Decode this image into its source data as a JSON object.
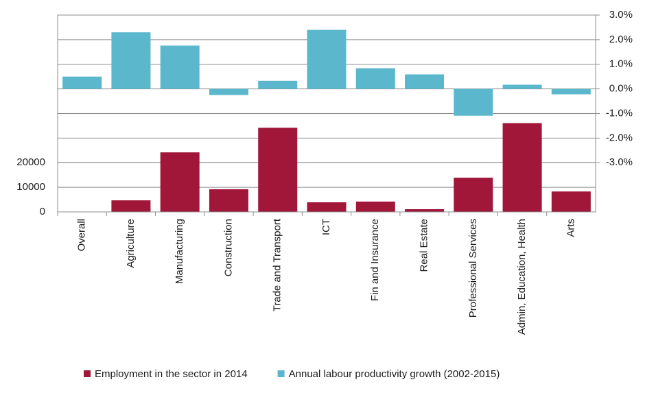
{
  "chart_data": {
    "type": "bar",
    "categories": [
      "Overall",
      "Agriculture",
      "Manufacturing",
      "Construction",
      "Trade and Transport",
      "ICT",
      "Fin and Insurance",
      "Real Estate",
      "Professional Services",
      "Admin, Education, Health",
      "Arts"
    ],
    "series": [
      {
        "name": "Employment in the sector in 2014",
        "color": "#a0173a",
        "values": [
          0,
          4700,
          24200,
          9200,
          34200,
          3900,
          4200,
          1100,
          13900,
          36100,
          8300
        ]
      },
      {
        "name": "Annual labour productivity growth (2002-2015)",
        "color": "#5bb8cc",
        "axis": "y2",
        "values": [
          0.5,
          2.3,
          1.76,
          -0.25,
          0.33,
          2.4,
          0.84,
          0.59,
          -1.09,
          0.17,
          -0.22
        ]
      }
    ],
    "ylim": [
      0,
      80000
    ],
    "yticks": [
      0,
      10000,
      20000
    ],
    "y2lim": [
      -5,
      3
    ],
    "y2ticks": [
      {
        "value": 3,
        "label": "3.0%"
      },
      {
        "value": 2,
        "label": "2.0%"
      },
      {
        "value": 1,
        "label": "1.0%"
      },
      {
        "value": 0,
        "label": "0.0%"
      },
      {
        "value": -1,
        "label": "-1.0%"
      },
      {
        "value": -2,
        "label": "-2.0%"
      },
      {
        "value": -3,
        "label": "-3.0%"
      }
    ],
    "grid": true,
    "legend": "bottom"
  }
}
